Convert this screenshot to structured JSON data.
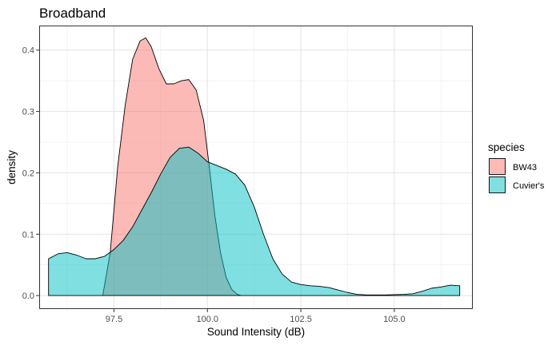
{
  "chart_data": {
    "type": "area",
    "title": "Broadband",
    "xlabel": "Sound Intensity (dB)",
    "ylabel": "density",
    "xlim": [
      95.5,
      107.1
    ],
    "ylim": [
      -0.022,
      0.44
    ],
    "x_ticks": [
      97.5,
      100.0,
      102.5,
      105.0
    ],
    "x_tick_labels": [
      "97.5",
      "100.0",
      "102.5",
      "105.0"
    ],
    "y_ticks": [
      0.0,
      0.1,
      0.2,
      0.3,
      0.4
    ],
    "y_tick_labels": [
      "0.0",
      "0.1",
      "0.2",
      "0.3",
      "0.4"
    ],
    "grid": true,
    "legend": {
      "title": "species",
      "position": "right"
    },
    "series": [
      {
        "name": "BW43",
        "color": "#F8766D",
        "opacity": 0.5,
        "x": [
          97.2,
          97.4,
          97.6,
          97.8,
          98.0,
          98.2,
          98.35,
          98.5,
          98.7,
          98.9,
          99.1,
          99.3,
          99.5,
          99.7,
          99.9,
          100.05,
          100.2,
          100.35,
          100.5,
          100.65,
          100.8,
          100.9
        ],
        "y": [
          0.0,
          0.07,
          0.21,
          0.31,
          0.385,
          0.415,
          0.42,
          0.405,
          0.37,
          0.345,
          0.345,
          0.35,
          0.352,
          0.335,
          0.285,
          0.21,
          0.13,
          0.07,
          0.03,
          0.01,
          0.002,
          0.0
        ]
      },
      {
        "name": "Cuvier's",
        "color": "#00BFC4",
        "opacity": 0.5,
        "x": [
          95.75,
          96.0,
          96.25,
          96.5,
          96.75,
          97.0,
          97.25,
          97.5,
          97.75,
          98.0,
          98.25,
          98.5,
          98.75,
          99.0,
          99.25,
          99.5,
          99.75,
          100.0,
          100.25,
          100.5,
          100.75,
          101.0,
          101.25,
          101.5,
          101.75,
          102.0,
          102.25,
          102.5,
          102.75,
          103.0,
          103.25,
          103.5,
          103.75,
          104.0,
          104.25,
          104.5,
          104.75,
          105.0,
          105.25,
          105.5,
          105.75,
          106.0,
          106.25,
          106.5,
          106.75
        ],
        "y": [
          0.06,
          0.068,
          0.07,
          0.066,
          0.06,
          0.06,
          0.064,
          0.075,
          0.09,
          0.112,
          0.14,
          0.168,
          0.198,
          0.225,
          0.24,
          0.242,
          0.232,
          0.218,
          0.212,
          0.206,
          0.198,
          0.18,
          0.145,
          0.1,
          0.06,
          0.035,
          0.022,
          0.018,
          0.016,
          0.015,
          0.013,
          0.009,
          0.005,
          0.002,
          0.001,
          0.001,
          0.001,
          0.0015,
          0.002,
          0.003,
          0.007,
          0.012,
          0.014,
          0.017,
          0.016
        ]
      }
    ]
  }
}
